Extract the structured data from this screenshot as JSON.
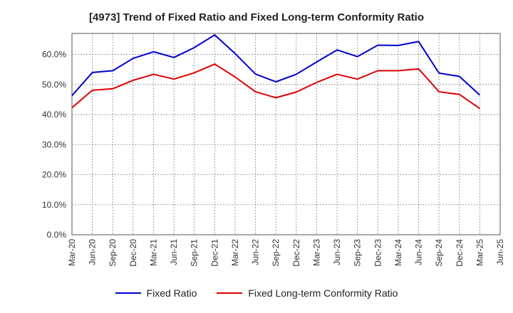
{
  "chart_data": {
    "type": "line",
    "title": "[4973]  Trend of Fixed Ratio and Fixed Long-term Conformity Ratio",
    "xlabel": "",
    "ylabel": "",
    "x_tick_labels": [
      "Mar-20",
      "Jun-20",
      "Sep-20",
      "Dec-20",
      "Mar-21",
      "Jun-21",
      "Sep-21",
      "Dec-21",
      "Mar-22",
      "Jun-22",
      "Sep-22",
      "Dec-22",
      "Mar-23",
      "Jun-23",
      "Sep-23",
      "Dec-23",
      "Mar-24",
      "Jun-24",
      "Sep-24",
      "Dec-24",
      "Mar-25",
      "Jun-25"
    ],
    "x": [
      "Mar-20",
      "Jun-20",
      "Sep-20",
      "Dec-20",
      "Mar-21",
      "Jun-21",
      "Sep-21",
      "Dec-21",
      "Mar-22",
      "Jun-22",
      "Sep-22",
      "Dec-22",
      "Mar-23",
      "Jun-23",
      "Sep-23",
      "Dec-23",
      "Mar-24",
      "Jun-24",
      "Sep-24",
      "Dec-24",
      "Mar-25"
    ],
    "y_tick_labels": [
      "0.0%",
      "10.0%",
      "20.0%",
      "30.0%",
      "40.0%",
      "50.0%",
      "60.0%"
    ],
    "y_ticks": [
      0,
      10,
      20,
      30,
      40,
      50,
      60
    ],
    "ylim": [
      0,
      67
    ],
    "grid": true,
    "legend_position": "bottom",
    "series": [
      {
        "name": "Fixed Ratio",
        "color": "#0000cc",
        "values": [
          46.3,
          54.0,
          54.6,
          58.7,
          60.9,
          59.0,
          62.3,
          66.5,
          60.3,
          53.5,
          50.9,
          53.4,
          57.5,
          61.5,
          59.3,
          63.1,
          63.0,
          64.3,
          53.8,
          52.7,
          46.5
        ]
      },
      {
        "name": "Fixed Long-term Conformity Ratio",
        "color": "#dd0000",
        "values": [
          42.3,
          48.1,
          48.6,
          51.4,
          53.4,
          51.8,
          53.9,
          56.8,
          52.5,
          47.6,
          45.6,
          47.5,
          50.7,
          53.4,
          51.8,
          54.6,
          54.6,
          55.2,
          47.6,
          46.7,
          42.0
        ]
      }
    ]
  }
}
